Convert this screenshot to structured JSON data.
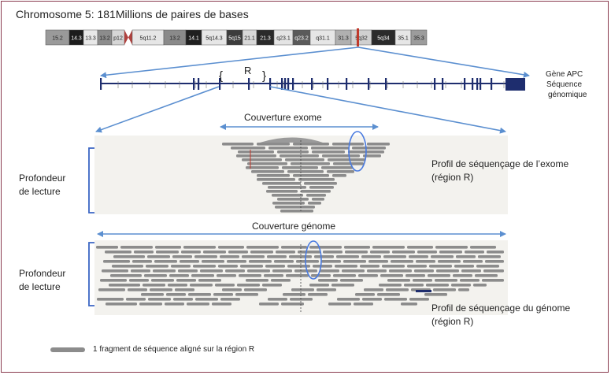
{
  "title": "Chromosome 5: 181Millions de paires de bases",
  "chromosome": {
    "bands": [
      {
        "label": "15.2",
        "shade": "#9a9a9a",
        "text": "#222222"
      },
      {
        "label": "14.3",
        "shade": "#1c1c1c",
        "text": "#ffffff"
      },
      {
        "label": "13.3",
        "shade": "#e8e8e8",
        "text": "#222222"
      },
      {
        "label": "13.2",
        "shade": "#8c8c8c",
        "text": "#222222"
      },
      {
        "label": "p12",
        "shade": "#d6d6d6",
        "text": "#222222"
      },
      {
        "label": "5q11.2",
        "shade": "#e6e6e6",
        "text": "#222222"
      },
      {
        "label": "13.2",
        "shade": "#8a8a8a",
        "text": "#222222"
      },
      {
        "label": "14.1",
        "shade": "#1f1f1f",
        "text": "#ffffff"
      },
      {
        "label": "5q14.3",
        "shade": "#e6e6e6",
        "text": "#222222"
      },
      {
        "label": "5q15",
        "shade": "#3c3c3c",
        "text": "#ffffff"
      },
      {
        "label": "21.1",
        "shade": "#d8d8d8",
        "text": "#222222"
      },
      {
        "label": "21.3",
        "shade": "#2a2a2a",
        "text": "#ffffff"
      },
      {
        "label": "q23.1",
        "shade": "#e4e4e4",
        "text": "#222222"
      },
      {
        "label": "q23.2",
        "shade": "#5a5a5a",
        "text": "#ffffff"
      },
      {
        "label": "q31.1",
        "shade": "#e6e6e6",
        "text": "#222222"
      },
      {
        "label": "31.3",
        "shade": "#b0b0b0",
        "text": "#222222"
      },
      {
        "label": "5q32",
        "shade": "#d0d0d0",
        "text": "#222222"
      },
      {
        "label": "5q34",
        "shade": "#2a2a2a",
        "text": "#ffffff"
      },
      {
        "label": "35.1",
        "shade": "#e6e6e6",
        "text": "#222222"
      },
      {
        "label": "35.3",
        "shade": "#9c9c9c",
        "text": "#222222"
      }
    ]
  },
  "gene": {
    "label_line1": "Gène APC",
    "label_line2": "Séquence",
    "label_line3": "génomique",
    "region_label": "R",
    "bracket_open": "{",
    "bracket_close": "}"
  },
  "exome": {
    "coverage_label": "Couverture exome",
    "depth_label_line1": "Profondeur",
    "depth_label_line2": "de lecture",
    "profile_line1": "Profil de séquençage de l’exome",
    "profile_line2": "(région R)"
  },
  "genome": {
    "coverage_label": "Couverture génome",
    "depth_label_line1": "Profondeur",
    "depth_label_line2": "de lecture",
    "profile_line1": "Profil de séquençage du génome",
    "profile_line2": "(région R)"
  },
  "legend": {
    "text": "1 fragment de séquence aligné sur la région R"
  },
  "colors": {
    "frame": "#8a3b4f",
    "arrow": "#5b8fd0",
    "gene": "#1e2d6e",
    "centromere": "#b0413e",
    "marker": "#c0392b",
    "read": "#8c8c8c",
    "bracket": "#3b66c4",
    "ellipse": "#4a7be0"
  }
}
